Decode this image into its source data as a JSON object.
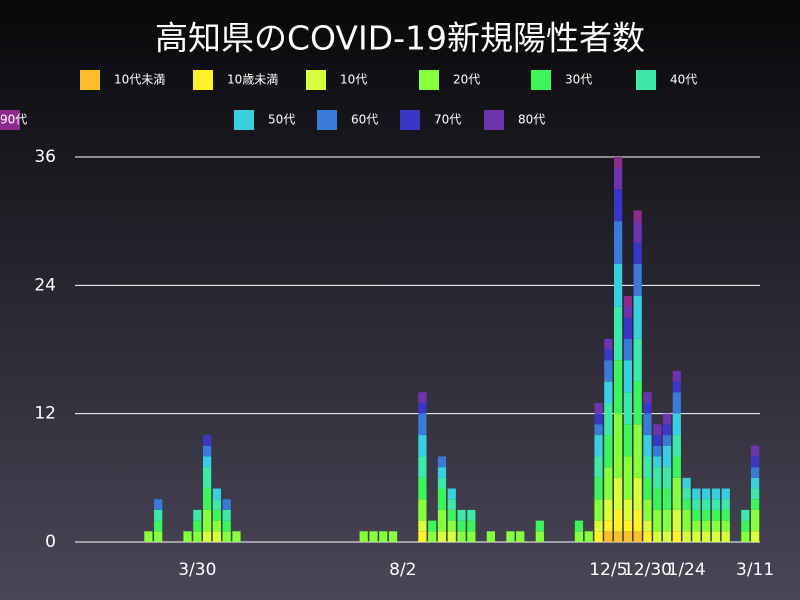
{
  "chart_data": {
    "type": "stacked-bar",
    "title": "高知県のCOVID-19新規陽性者数",
    "categories": [
      null,
      null,
      null,
      null,
      null,
      null,
      null,
      null,
      null,
      null,
      null,
      null,
      "3/30",
      null,
      null,
      null,
      null,
      null,
      null,
      null,
      null,
      null,
      null,
      null,
      null,
      null,
      null,
      null,
      null,
      null,
      null,
      null,
      null,
      "8/2",
      null,
      null,
      null,
      null,
      null,
      null,
      null,
      null,
      null,
      null,
      null,
      null,
      null,
      null,
      null,
      null,
      null,
      null,
      null,
      null,
      "12/5",
      null,
      null,
      null,
      "12/30",
      null,
      null,
      null,
      "1/24",
      null,
      null,
      null,
      null,
      null,
      null,
      "3/11"
    ],
    "series": [
      {
        "name": "10代未満",
        "color": "#fbbf2a",
        "values": [
          0,
          0,
          0,
          0,
          0,
          0,
          0,
          0,
          0,
          0,
          0,
          0,
          0,
          0,
          0,
          0,
          0,
          0,
          0,
          0,
          0,
          0,
          0,
          0,
          0,
          0,
          0,
          0,
          0,
          0,
          0,
          0,
          0,
          0,
          0,
          0,
          0,
          0,
          0,
          0,
          0,
          0,
          0,
          0,
          0,
          0,
          0,
          0,
          0,
          0,
          0,
          0,
          0,
          0,
          1,
          1,
          1,
          1,
          0,
          0,
          0,
          0,
          0,
          0,
          0,
          0,
          0,
          0,
          0,
          0
        ]
      },
      {
        "name": "10歳未満",
        "color": "#fff226",
        "values": [
          0,
          0,
          0,
          0,
          0,
          0,
          0,
          0,
          0,
          0,
          0,
          0,
          0,
          0,
          0,
          0,
          0,
          0,
          0,
          0,
          0,
          0,
          0,
          0,
          0,
          0,
          0,
          0,
          0,
          0,
          0,
          0,
          0,
          0,
          0,
          1,
          0,
          0,
          0,
          0,
          0,
          0,
          0,
          0,
          0,
          0,
          0,
          0,
          0,
          0,
          0,
          0,
          0,
          1,
          1,
          2,
          1,
          2,
          1,
          0,
          0,
          1,
          0,
          0,
          0,
          0,
          0,
          0,
          0,
          0
        ]
      },
      {
        "name": "10代",
        "color": "#d8ff3c",
        "values": [
          0,
          0,
          0,
          0,
          0,
          0,
          0,
          0,
          0,
          0,
          0,
          0,
          0,
          1,
          1,
          0,
          0,
          0,
          0,
          0,
          0,
          0,
          0,
          0,
          0,
          0,
          0,
          0,
          0,
          0,
          0,
          0,
          0,
          0,
          0,
          1,
          0,
          1,
          1,
          0,
          0,
          0,
          0,
          0,
          0,
          0,
          0,
          0,
          0,
          0,
          0,
          0,
          0,
          1,
          2,
          3,
          2,
          3,
          1,
          1,
          1,
          2,
          1,
          1,
          1,
          1,
          1,
          0,
          0,
          1
        ]
      },
      {
        "name": "20代",
        "color": "#86ff3c",
        "values": [
          0,
          0,
          0,
          0,
          0,
          0,
          0,
          1,
          1,
          0,
          0,
          1,
          1,
          2,
          1,
          1,
          1,
          0,
          0,
          0,
          0,
          0,
          0,
          0,
          0,
          0,
          0,
          0,
          0,
          1,
          1,
          1,
          1,
          0,
          0,
          2,
          1,
          2,
          1,
          1,
          1,
          0,
          1,
          0,
          1,
          1,
          0,
          1,
          0,
          0,
          0,
          1,
          1,
          2,
          3,
          6,
          4,
          5,
          2,
          2,
          2,
          3,
          2,
          1,
          1,
          1,
          1,
          0,
          1,
          2
        ]
      },
      {
        "name": "30代",
        "color": "#3cf55a",
        "values": [
          0,
          0,
          0,
          0,
          0,
          0,
          0,
          0,
          1,
          0,
          0,
          0,
          1,
          2,
          1,
          1,
          0,
          0,
          0,
          0,
          0,
          0,
          0,
          0,
          0,
          0,
          0,
          0,
          0,
          0,
          0,
          0,
          0,
          0,
          0,
          2,
          1,
          2,
          1,
          1,
          1,
          0,
          0,
          0,
          0,
          0,
          0,
          1,
          0,
          0,
          0,
          1,
          0,
          2,
          3,
          5,
          3,
          4,
          2,
          2,
          2,
          2,
          1,
          1,
          1,
          1,
          1,
          0,
          1,
          1
        ]
      },
      {
        "name": "40代",
        "color": "#3ee8a8",
        "values": [
          0,
          0,
          0,
          0,
          0,
          0,
          0,
          0,
          1,
          0,
          0,
          0,
          1,
          2,
          1,
          1,
          0,
          0,
          0,
          0,
          0,
          0,
          0,
          0,
          0,
          0,
          0,
          0,
          0,
          0,
          0,
          0,
          0,
          0,
          0,
          2,
          0,
          1,
          1,
          1,
          1,
          0,
          0,
          0,
          0,
          0,
          0,
          0,
          0,
          0,
          0,
          0,
          0,
          2,
          3,
          5,
          3,
          4,
          2,
          2,
          2,
          2,
          1,
          1,
          1,
          1,
          1,
          0,
          1,
          1
        ]
      },
      {
        "name": "50代",
        "color": "#38d0e0",
        "values": [
          0,
          0,
          0,
          0,
          0,
          0,
          0,
          0,
          0,
          0,
          0,
          0,
          0,
          1,
          1,
          0,
          0,
          0,
          0,
          0,
          0,
          0,
          0,
          0,
          0,
          0,
          0,
          0,
          0,
          0,
          0,
          0,
          0,
          0,
          0,
          2,
          0,
          1,
          1,
          0,
          0,
          0,
          0,
          0,
          0,
          0,
          0,
          0,
          0,
          0,
          0,
          0,
          0,
          2,
          2,
          4,
          3,
          4,
          2,
          1,
          2,
          2,
          1,
          1,
          1,
          1,
          1,
          0,
          0,
          1
        ]
      },
      {
        "name": "60代",
        "color": "#3a7ad8",
        "values": [
          0,
          0,
          0,
          0,
          0,
          0,
          0,
          0,
          1,
          0,
          0,
          0,
          0,
          1,
          0,
          1,
          0,
          0,
          0,
          0,
          0,
          0,
          0,
          0,
          0,
          0,
          0,
          0,
          0,
          0,
          0,
          0,
          0,
          0,
          0,
          2,
          0,
          1,
          0,
          0,
          0,
          0,
          0,
          0,
          0,
          0,
          0,
          0,
          0,
          0,
          0,
          0,
          0,
          1,
          2,
          4,
          2,
          3,
          2,
          1,
          1,
          2,
          0,
          0,
          0,
          0,
          0,
          0,
          0,
          1
        ]
      },
      {
        "name": "70代",
        "color": "#3a36c8",
        "values": [
          0,
          0,
          0,
          0,
          0,
          0,
          0,
          0,
          0,
          0,
          0,
          0,
          0,
          1,
          0,
          0,
          0,
          0,
          0,
          0,
          0,
          0,
          0,
          0,
          0,
          0,
          0,
          0,
          0,
          0,
          0,
          0,
          0,
          0,
          0,
          1,
          0,
          0,
          0,
          0,
          0,
          0,
          0,
          0,
          0,
          0,
          0,
          0,
          0,
          0,
          0,
          0,
          0,
          1,
          1,
          3,
          2,
          2,
          1,
          1,
          1,
          1,
          0,
          0,
          0,
          0,
          0,
          0,
          0,
          1
        ]
      },
      {
        "name": "80代",
        "color": "#6e34b0",
        "values": [
          0,
          0,
          0,
          0,
          0,
          0,
          0,
          0,
          0,
          0,
          0,
          0,
          0,
          0,
          0,
          0,
          0,
          0,
          0,
          0,
          0,
          0,
          0,
          0,
          0,
          0,
          0,
          0,
          0,
          0,
          0,
          0,
          0,
          0,
          0,
          1,
          0,
          0,
          0,
          0,
          0,
          0,
          0,
          0,
          0,
          0,
          0,
          0,
          0,
          0,
          0,
          0,
          0,
          1,
          1,
          2,
          1,
          2,
          1,
          1,
          1,
          1,
          0,
          0,
          0,
          0,
          0,
          0,
          0,
          1
        ]
      },
      {
        "name": "90代",
        "color": "#8e2c8e",
        "values": [
          0,
          0,
          0,
          0,
          0,
          0,
          0,
          0,
          0,
          0,
          0,
          0,
          0,
          0,
          0,
          0,
          0,
          0,
          0,
          0,
          0,
          0,
          0,
          0,
          0,
          0,
          0,
          0,
          0,
          0,
          0,
          0,
          0,
          0,
          0,
          0,
          0,
          0,
          0,
          0,
          0,
          0,
          0,
          0,
          0,
          0,
          0,
          0,
          0,
          0,
          0,
          0,
          0,
          0,
          0,
          1,
          1,
          1,
          0,
          0,
          0,
          0,
          0,
          0,
          0,
          0,
          0,
          0,
          0,
          0
        ]
      }
    ],
    "ylim": [
      0,
      36
    ],
    "yticks": [
      0,
      12,
      24,
      36
    ],
    "grid": true,
    "legend": "top"
  }
}
